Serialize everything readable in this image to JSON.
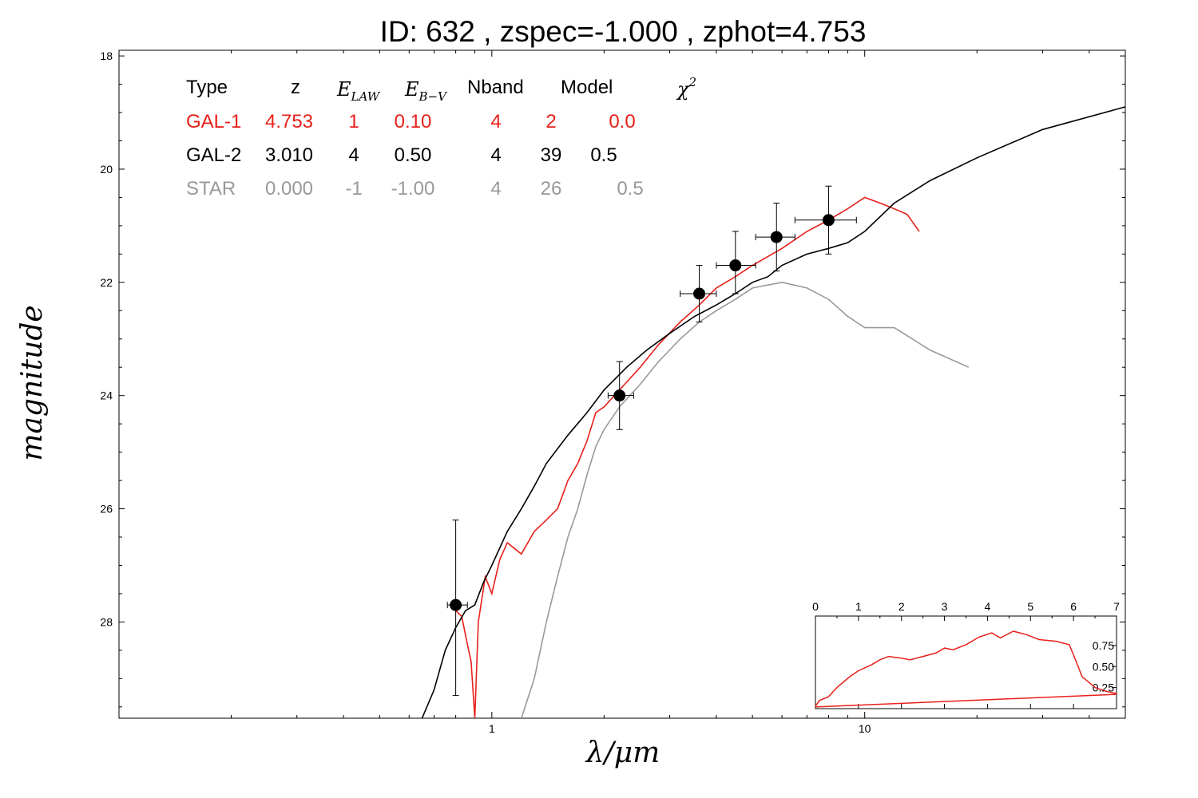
{
  "figure": {
    "title": "ID:  632   , zspec=-1.000 , zphot=4.753"
  },
  "chart_data": [
    {
      "type": "line",
      "title": "ID:  632   , zspec=-1.000 , zphot=4.753",
      "xlabel": "λ/μm",
      "ylabel": "magnitude",
      "xscale": "log",
      "xlim": [
        0.1,
        50
      ],
      "ylim": [
        29.7,
        17.9
      ],
      "y_inverted": true,
      "x_ticks": [
        {
          "value": 1,
          "label": "1"
        },
        {
          "value": 10,
          "label": "10"
        }
      ],
      "y_ticks": [
        {
          "value": 18,
          "label": "18"
        },
        {
          "value": 20,
          "label": "20"
        },
        {
          "value": 22,
          "label": "22"
        },
        {
          "value": 24,
          "label": "24"
        },
        {
          "value": 26,
          "label": "26"
        },
        {
          "value": 28,
          "label": "28"
        }
      ],
      "legend_table": {
        "headers": [
          "Type",
          "z",
          "E_LAW",
          "E_B−V",
          "Nband",
          "Model",
          "χ²"
        ],
        "rows": [
          {
            "color": "#e8201a",
            "cells": [
              "GAL-1",
              "4.753",
              "1",
              "0.10",
              "4",
              "2",
              "0.0"
            ]
          },
          {
            "color": "#000000",
            "cells": [
              "GAL-2",
              "3.010",
              "4",
              "0.50",
              "4",
              "39",
              "0.5"
            ]
          },
          {
            "color": "#999999",
            "cells": [
              "STAR",
              "0.000",
              "-1",
              "-1.00",
              "4",
              "26",
              "0.5"
            ]
          }
        ]
      },
      "series": [
        {
          "color": "#e8201a",
          "points": [
            [
              0.8,
              27.8
            ],
            [
              0.83,
              27.9
            ],
            [
              0.86,
              28.4
            ],
            [
              0.88,
              28.7
            ],
            [
              0.9,
              29.7
            ],
            [
              0.92,
              28.0
            ],
            [
              0.96,
              27.2
            ],
            [
              1.0,
              27.5
            ],
            [
              1.05,
              26.9
            ],
            [
              1.1,
              26.6
            ],
            [
              1.2,
              26.8
            ],
            [
              1.3,
              26.4
            ],
            [
              1.4,
              26.2
            ],
            [
              1.5,
              26.0
            ],
            [
              1.6,
              25.5
            ],
            [
              1.7,
              25.2
            ],
            [
              1.8,
              24.8
            ],
            [
              1.9,
              24.3
            ],
            [
              2.0,
              24.2
            ],
            [
              2.2,
              23.9
            ],
            [
              2.5,
              23.5
            ],
            [
              2.8,
              23.1
            ],
            [
              3.2,
              22.7
            ],
            [
              3.6,
              22.4
            ],
            [
              4.0,
              22.1
            ],
            [
              4.5,
              21.9
            ],
            [
              5.0,
              21.7
            ],
            [
              6.0,
              21.4
            ],
            [
              7.0,
              21.1
            ],
            [
              8.0,
              20.9
            ],
            [
              9.0,
              20.7
            ],
            [
              10.0,
              20.5
            ],
            [
              11.0,
              20.6
            ],
            [
              12.0,
              20.7
            ],
            [
              13.0,
              20.8
            ],
            [
              14.0,
              21.1
            ]
          ]
        },
        {
          "color": "#000000",
          "points": [
            [
              0.65,
              29.7
            ],
            [
              0.7,
              29.2
            ],
            [
              0.75,
              28.5
            ],
            [
              0.8,
              28.1
            ],
            [
              0.85,
              27.8
            ],
            [
              0.9,
              27.7
            ],
            [
              0.95,
              27.3
            ],
            [
              1.0,
              27.0
            ],
            [
              1.1,
              26.4
            ],
            [
              1.2,
              26.0
            ],
            [
              1.3,
              25.6
            ],
            [
              1.4,
              25.2
            ],
            [
              1.6,
              24.7
            ],
            [
              1.8,
              24.3
            ],
            [
              2.0,
              23.9
            ],
            [
              2.3,
              23.5
            ],
            [
              2.6,
              23.2
            ],
            [
              3.0,
              22.9
            ],
            [
              3.5,
              22.6
            ],
            [
              4.0,
              22.4
            ],
            [
              4.5,
              22.2
            ],
            [
              5.0,
              22.0
            ],
            [
              5.5,
              21.9
            ],
            [
              6.0,
              21.7
            ],
            [
              7.0,
              21.5
            ],
            [
              8.0,
              21.4
            ],
            [
              9.0,
              21.3
            ],
            [
              10.0,
              21.1
            ],
            [
              12.0,
              20.6
            ],
            [
              15.0,
              20.2
            ],
            [
              20.0,
              19.8
            ],
            [
              30.0,
              19.3
            ],
            [
              50.0,
              18.9
            ]
          ]
        },
        {
          "color": "#999999",
          "points": [
            [
              1.2,
              29.7
            ],
            [
              1.3,
              29.0
            ],
            [
              1.4,
              28.0
            ],
            [
              1.5,
              27.2
            ],
            [
              1.6,
              26.5
            ],
            [
              1.7,
              26.0
            ],
            [
              1.8,
              25.4
            ],
            [
              1.9,
              24.9
            ],
            [
              2.0,
              24.6
            ],
            [
              2.2,
              24.2
            ],
            [
              2.5,
              23.8
            ],
            [
              2.8,
              23.4
            ],
            [
              3.2,
              23.0
            ],
            [
              3.6,
              22.7
            ],
            [
              4.0,
              22.5
            ],
            [
              4.5,
              22.3
            ],
            [
              5.0,
              22.1
            ],
            [
              6.0,
              22.0
            ],
            [
              7.0,
              22.1
            ],
            [
              8.0,
              22.3
            ],
            [
              9.0,
              22.6
            ],
            [
              10.0,
              22.8
            ],
            [
              12.0,
              22.8
            ],
            [
              15.0,
              23.2
            ],
            [
              19.0,
              23.5
            ]
          ]
        }
      ],
      "photometry": [
        {
          "x": 0.8,
          "y": 27.7,
          "x_lo": 0.76,
          "x_hi": 0.86,
          "y_lo": 26.2,
          "y_hi": 29.3
        },
        {
          "x": 2.2,
          "y": 24.0,
          "x_lo": 2.05,
          "x_hi": 2.4,
          "y_lo": 23.4,
          "y_hi": 24.6
        },
        {
          "x": 3.6,
          "y": 22.2,
          "x_lo": 3.2,
          "x_hi": 4.0,
          "y_lo": 21.7,
          "y_hi": 22.7
        },
        {
          "x": 4.5,
          "y": 21.7,
          "x_lo": 4.0,
          "x_hi": 5.1,
          "y_lo": 21.1,
          "y_hi": 22.2
        },
        {
          "x": 5.8,
          "y": 21.2,
          "x_lo": 5.1,
          "x_hi": 6.5,
          "y_lo": 20.6,
          "y_hi": 21.8
        },
        {
          "x": 8.0,
          "y": 20.9,
          "x_lo": 6.5,
          "x_hi": 9.5,
          "y_lo": 20.3,
          "y_hi": 21.5
        }
      ]
    },
    {
      "type": "line",
      "title": "",
      "xlabel": "",
      "ylabel": "",
      "xlim": [
        0,
        7
      ],
      "ylim": [
        0,
        1.1
      ],
      "x_ticks": [
        {
          "value": 0,
          "label": "0"
        },
        {
          "value": 1,
          "label": "1"
        },
        {
          "value": 2,
          "label": "2"
        },
        {
          "value": 3,
          "label": "3"
        },
        {
          "value": 4,
          "label": "4"
        },
        {
          "value": 5,
          "label": "5"
        },
        {
          "value": 6,
          "label": "6"
        },
        {
          "value": 7,
          "label": "7"
        }
      ],
      "y_ticks": [
        {
          "value": 0.25,
          "label": "0.25"
        },
        {
          "value": 0.5,
          "label": "0.50"
        },
        {
          "value": 0.75,
          "label": "0.75"
        }
      ],
      "series": [
        {
          "color": "#e8201a",
          "points": [
            [
              0.0,
              0.03
            ],
            [
              0.1,
              0.1
            ],
            [
              0.3,
              0.14
            ],
            [
              0.5,
              0.25
            ],
            [
              0.8,
              0.38
            ],
            [
              1.0,
              0.45
            ],
            [
              1.3,
              0.52
            ],
            [
              1.5,
              0.58
            ],
            [
              1.7,
              0.62
            ],
            [
              2.0,
              0.6
            ],
            [
              2.2,
              0.58
            ],
            [
              2.5,
              0.62
            ],
            [
              2.8,
              0.66
            ],
            [
              3.0,
              0.72
            ],
            [
              3.2,
              0.7
            ],
            [
              3.5,
              0.76
            ],
            [
              3.8,
              0.85
            ],
            [
              4.1,
              0.9
            ],
            [
              4.3,
              0.84
            ],
            [
              4.6,
              0.92
            ],
            [
              4.9,
              0.88
            ],
            [
              5.2,
              0.82
            ],
            [
              5.6,
              0.8
            ],
            [
              5.9,
              0.76
            ],
            [
              6.0,
              0.64
            ],
            [
              6.2,
              0.38
            ],
            [
              6.5,
              0.25
            ],
            [
              6.8,
              0.2
            ],
            [
              7.0,
              0.18
            ]
          ]
        },
        {
          "color": "#e8201a",
          "points": [
            [
              0.0,
              0.02
            ],
            [
              7.0,
              0.17
            ]
          ]
        }
      ]
    }
  ]
}
